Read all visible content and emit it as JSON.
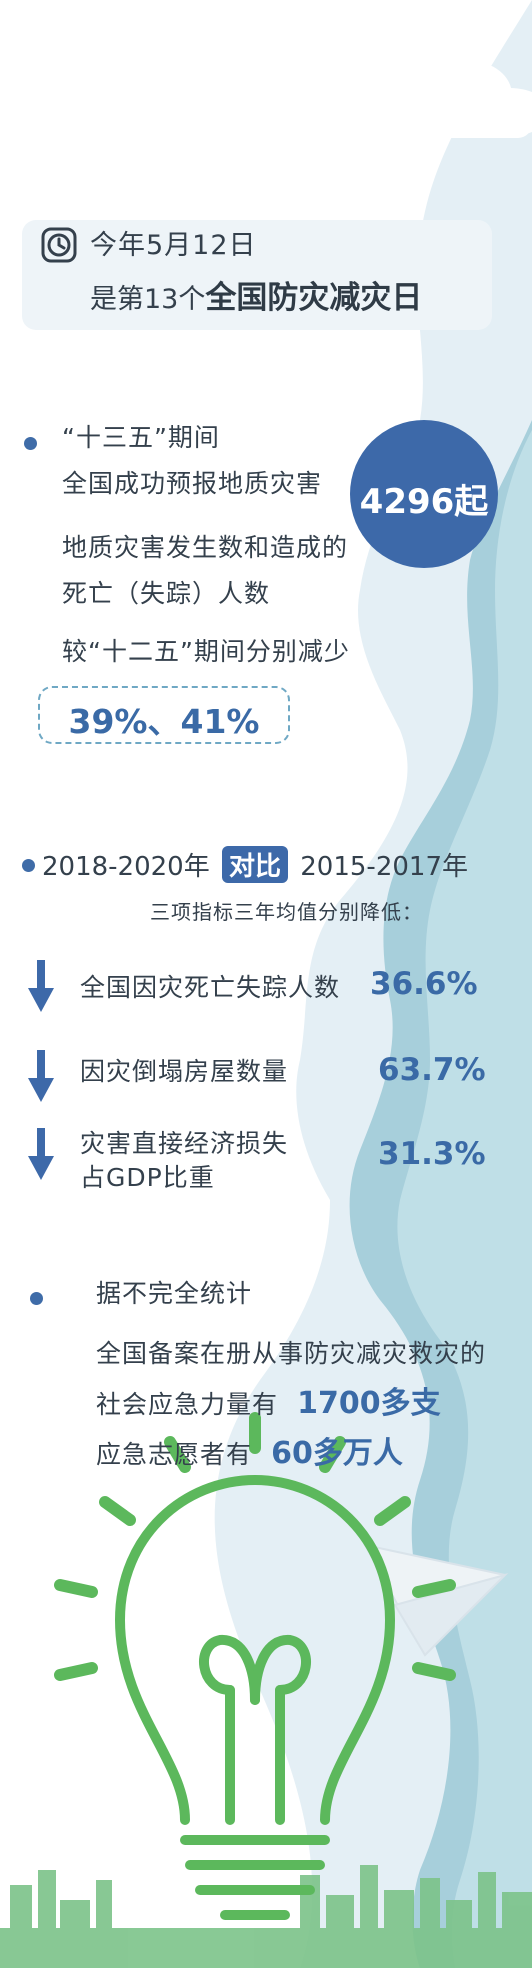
{
  "header": {
    "line1": "今年5月12日",
    "line2_prefix": "是第13个",
    "line2_highlight": "全国防灾减灾日"
  },
  "section1": {
    "line1": "“十三五”期间",
    "line2": "全国成功预报地质灾害",
    "circle_value": "4296起",
    "line3": "地质灾害发生数和造成的",
    "line4": "死亡（失踪）人数",
    "line5": "较“十二五”期间分别减少",
    "percentages": "39%、41%"
  },
  "section2": {
    "year_a": "2018-2020年",
    "badge": "对比",
    "year_b": "2015-2017年",
    "subtitle": "三项指标三年均值分别降低：",
    "items": [
      {
        "label": "全国因灾死亡失踪人数",
        "value": "36.6%"
      },
      {
        "label": "因灾倒塌房屋数量",
        "value": "63.7%"
      },
      {
        "label_line1": "灾害直接经济损失",
        "label_line2": "占GDP比重",
        "value": "31.3%"
      }
    ]
  },
  "section3": {
    "title": "据不完全统计",
    "line1": "全国备案在册从事防灾减灾救灾的",
    "line2_prefix": "社会应急力量有",
    "line2_value": "1700多支",
    "line3_prefix": "应急志愿者有",
    "line3_value": "60多万人"
  },
  "colors": {
    "accent_blue": "#3d69a9",
    "wave_light": "#dbeaf2",
    "bulb_green": "#5cb85c",
    "text": "#34404c"
  }
}
